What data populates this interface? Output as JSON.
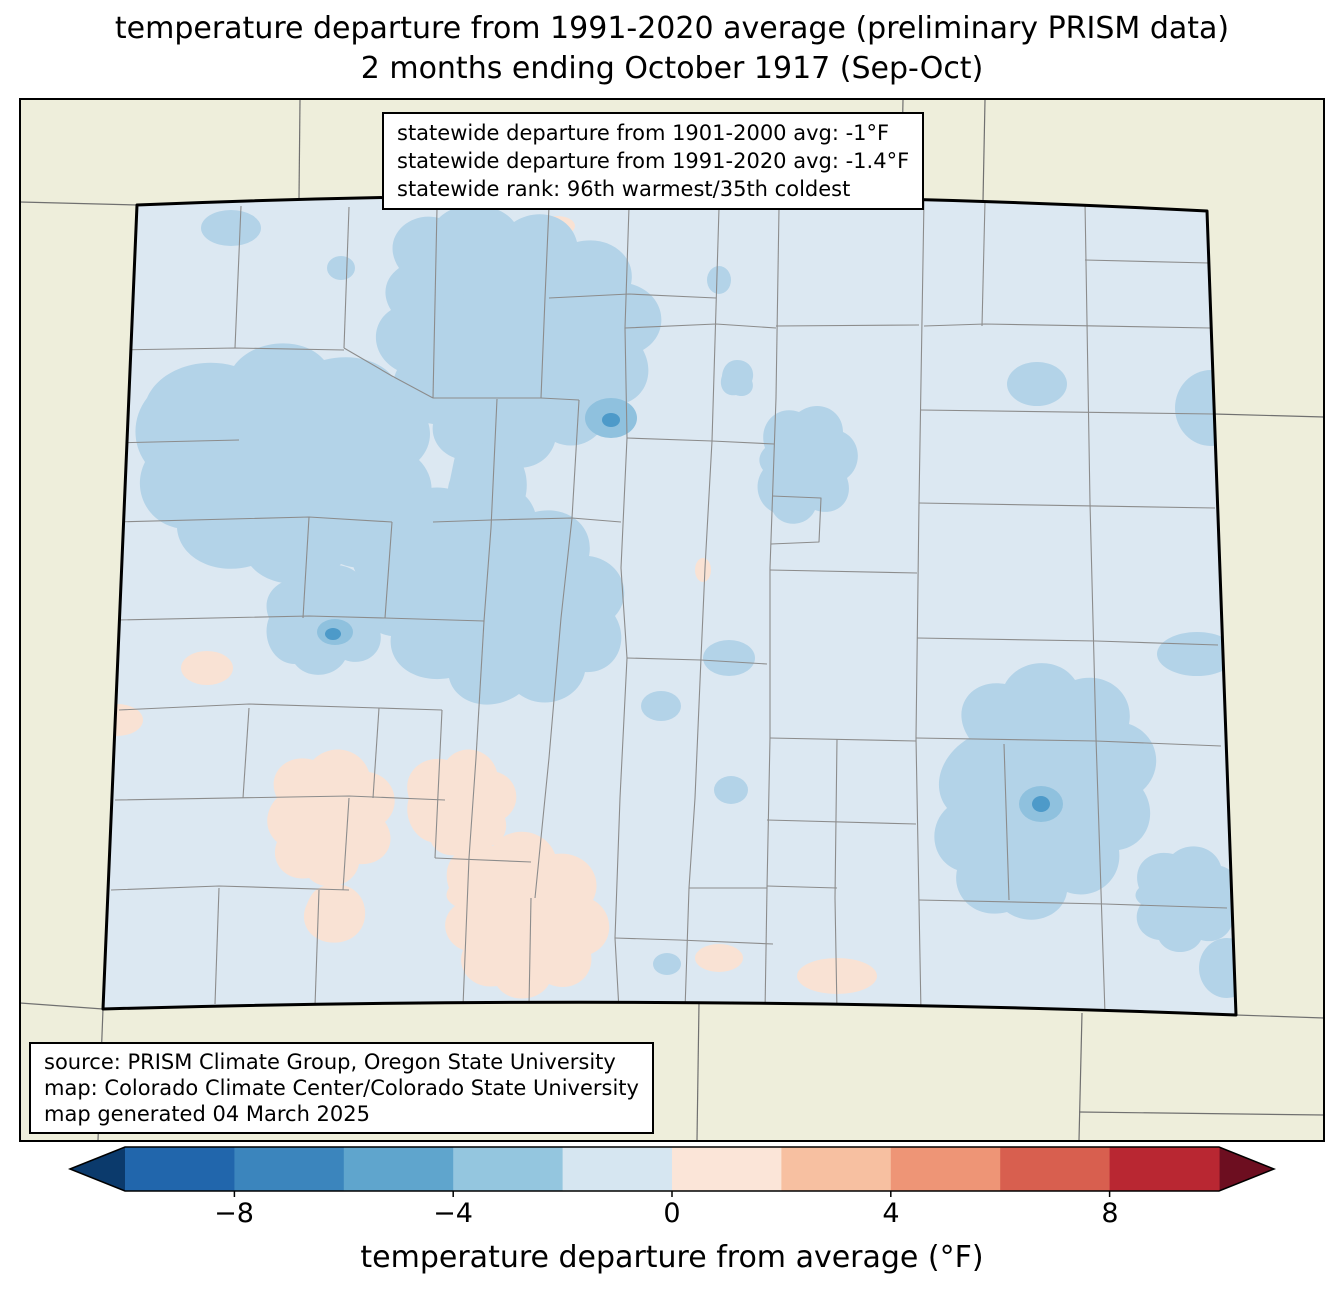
{
  "title": {
    "line1": "temperature departure from 1991-2020 average (preliminary PRISM data)",
    "line2": "2 months ending October 1917 (Sep-Oct)"
  },
  "stats_box": {
    "lines": [
      "statewide departure from 1901-2000 avg: -1°F",
      "statewide departure from 1991-2020 avg: -1.4°F",
      "statewide rank: 96th warmest/35th coldest"
    ]
  },
  "source_box": {
    "lines": [
      "source: PRISM Climate Group, Oregon State University",
      "map: Colorado Climate Center/Colorado State University",
      "map generated 04 March 2025"
    ]
  },
  "colorbar": {
    "label": "temperature departure from average (°F)",
    "ticks": [
      "−8",
      "−4",
      "0",
      "4",
      "8"
    ],
    "range": [
      -10,
      10
    ],
    "segment_colors": [
      "#2166ac",
      "#3b85bd",
      "#5fa5cd",
      "#94c6df",
      "#d6e6f1",
      "#fbe5d8",
      "#f7c0a1",
      "#ee9576",
      "#d85f4f",
      "#b92732"
    ],
    "left_arrow_color": "#0b3a6c",
    "right_arrow_color": "#6d0e20"
  },
  "map": {
    "colors": {
      "outside_fill": "#eeeedb",
      "state_base_fill": "#dce8f2",
      "cool_patch": "#b3d3e8",
      "cooler_patch": "#8fc1de",
      "coldest_spot": "#4d9ac9",
      "warm_patch": "#f9e2d4",
      "county_line": "#8c8c8c",
      "neighbor_state_line": "#707070",
      "state_border": "#000000"
    }
  }
}
